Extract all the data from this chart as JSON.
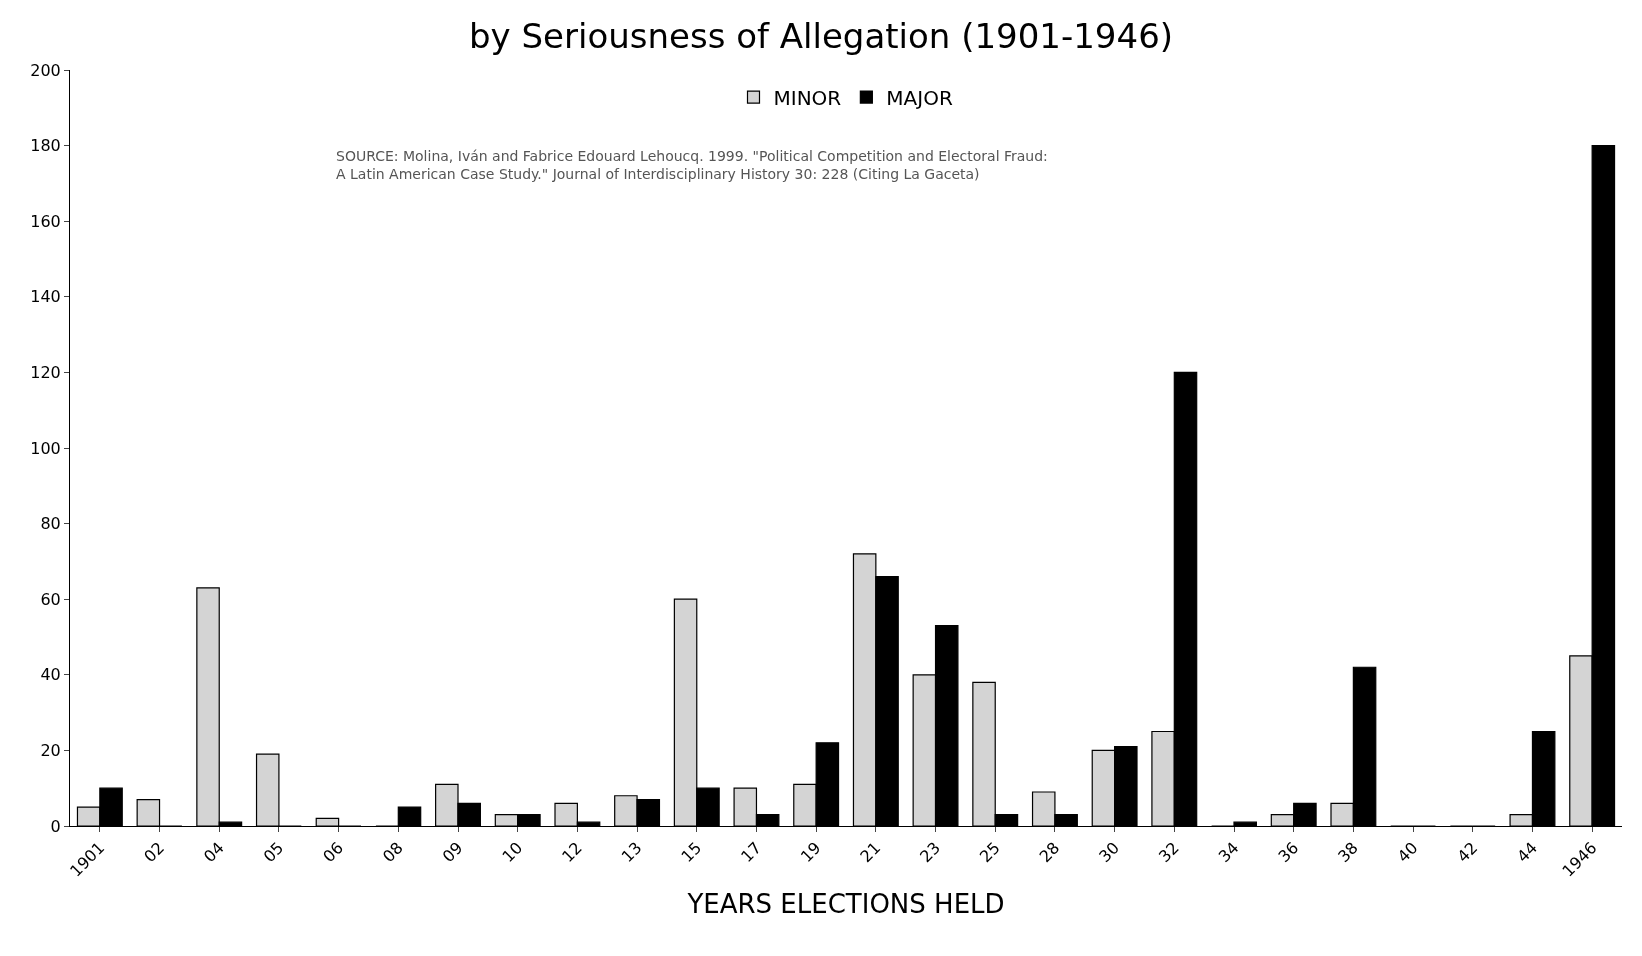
{
  "chart_data": {
    "type": "bar",
    "title": "by Seriousness of Allegation (1901-1946)",
    "xlabel": "YEARS ELECTIONS HELD",
    "categories": [
      "1901",
      "02",
      "04",
      "05",
      "06",
      "08",
      "09",
      "10",
      "12",
      "13",
      "15",
      "17",
      "19",
      "21",
      "23",
      "25",
      "28",
      "30",
      "32",
      "34",
      "36",
      "38",
      "40",
      "42",
      "44",
      "1946"
    ],
    "series": [
      {
        "name": "MINOR",
        "color": "#d4d4d4",
        "values": [
          5,
          7,
          63,
          19,
          2,
          0,
          11,
          3,
          6,
          8,
          60,
          10,
          11,
          72,
          40,
          38,
          9,
          20,
          25,
          0,
          3,
          6,
          0,
          0,
          3,
          45
        ]
      },
      {
        "name": "MAJOR",
        "color": "#000000",
        "values": [
          10,
          0,
          1,
          0,
          0,
          5,
          6,
          3,
          1,
          7,
          10,
          3,
          22,
          66,
          53,
          3,
          3,
          21,
          120,
          1,
          6,
          42,
          0,
          0,
          25,
          180
        ]
      }
    ],
    "ylim": [
      0,
      200
    ],
    "yticks": [
      0,
      20,
      40,
      60,
      80,
      100,
      120,
      140,
      160,
      180,
      200
    ],
    "legend": "top",
    "annotations": [
      "SOURCE: Molina, Iván and Fabrice Edouard Lehoucq. 1999. \"Political Competition and Electoral Fraud:\nA Latin American Case Study.\" Journal of Interdisciplinary History 30: 228 (Citing La Gaceta)"
    ]
  }
}
